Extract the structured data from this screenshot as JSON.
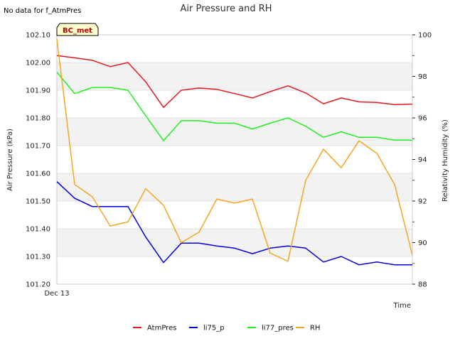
{
  "no_data_note": "No data for f_AtmPres",
  "badge_label": "BC_met",
  "chart_data": {
    "type": "line",
    "title": "Air Pressure and RH",
    "xlabel": "Time",
    "ylabel_left": "Air Pressure (kPa)",
    "ylabel_right": "Relativity Humidity (%)",
    "x_tick_labels": [
      "Dec 13"
    ],
    "x": [
      0,
      1,
      2,
      3,
      4,
      5,
      6,
      7,
      8,
      9,
      10,
      11,
      12,
      13,
      14,
      15,
      16,
      17,
      18,
      19,
      20
    ],
    "ylim_left": [
      101.2,
      102.1
    ],
    "ylim_right": [
      88,
      100
    ],
    "yticks_left": [
      "101.20",
      "101.30",
      "101.40",
      "101.50",
      "101.60",
      "101.70",
      "101.80",
      "101.90",
      "102.00",
      "102.10"
    ],
    "yticks_right": [
      "88",
      "90",
      "92",
      "94",
      "96",
      "98",
      "100"
    ],
    "grid_bands": true,
    "legend_position": "bottom",
    "series": [
      {
        "name": "AtmPres",
        "axis": "left",
        "color": "#e31a1c",
        "values": [
          102.025,
          102.017,
          102.008,
          101.985,
          102.0,
          101.93,
          101.838,
          101.9,
          101.908,
          101.903,
          101.888,
          101.872,
          101.895,
          101.916,
          101.89,
          101.851,
          101.872,
          101.858,
          101.856,
          101.848,
          101.85
        ]
      },
      {
        "name": "li75_p",
        "axis": "left",
        "color": "#0000e0",
        "values": [
          101.57,
          101.51,
          101.48,
          101.48,
          101.48,
          101.37,
          101.278,
          101.348,
          101.348,
          101.338,
          101.33,
          101.31,
          101.33,
          101.338,
          101.33,
          101.28,
          101.3,
          101.27,
          101.28,
          101.27,
          101.27
        ]
      },
      {
        "name": "li77_pres",
        "axis": "left",
        "color": "#22ee22",
        "values": [
          101.965,
          101.888,
          101.91,
          101.91,
          101.9,
          101.808,
          101.718,
          101.79,
          101.79,
          101.781,
          101.781,
          101.76,
          101.781,
          101.8,
          101.77,
          101.73,
          101.75,
          101.73,
          101.73,
          101.72,
          101.72
        ]
      },
      {
        "name": "RH",
        "axis": "right",
        "color": "#f5a623",
        "values": [
          99.8,
          92.8,
          92.2,
          90.8,
          91.0,
          92.6,
          91.8,
          90.0,
          90.5,
          92.1,
          91.9,
          92.1,
          89.5,
          89.1,
          93.0,
          94.5,
          93.6,
          94.9,
          94.3,
          92.8,
          89.4
        ]
      }
    ]
  }
}
